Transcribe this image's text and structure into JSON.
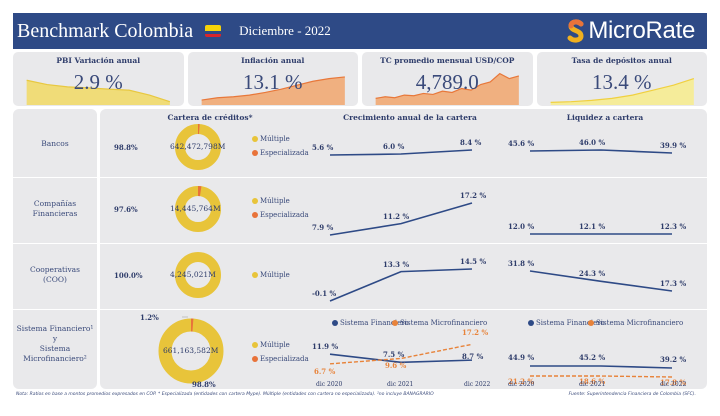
{
  "header": {
    "title": "Benchmark Colombia",
    "period": "Diciembre - 2022",
    "logo_text": "MicroRate",
    "flag": "colombia-flag-icon"
  },
  "kpis": [
    {
      "label": "PBI Variación anual",
      "value": "2.9 %",
      "color": "#f0dc78",
      "line": "#e8c840",
      "trend": [
        0.75,
        0.62,
        0.55,
        0.52,
        0.48,
        0.45,
        0.3,
        0.1
      ]
    },
    {
      "label": "Inflación anual",
      "value": "13.1 %",
      "color": "#f0b080",
      "line": "#e8783a",
      "trend": [
        0.15,
        0.22,
        0.25,
        0.3,
        0.38,
        0.48,
        0.6,
        0.72,
        0.8,
        0.85
      ]
    },
    {
      "label": "TC promedio mensual USD/COP",
      "value": "4,789.0",
      "color": "#f0b080",
      "line": "#e8783a",
      "trend": [
        0.2,
        0.25,
        0.22,
        0.3,
        0.28,
        0.35,
        0.32,
        0.42,
        0.38,
        0.5,
        0.45,
        0.62,
        0.7,
        0.95,
        0.8,
        0.88
      ]
    },
    {
      "label": "Tasa de depósitos anual",
      "value": "13.4 %",
      "color": "#f5ec9a",
      "line": "#f0d040",
      "trend": [
        0.08,
        0.1,
        0.14,
        0.2,
        0.3,
        0.45,
        0.6,
        0.8
      ]
    }
  ],
  "columns": {
    "cartera": "Cartera de créditos*",
    "crecimiento": "Crecimiento anual de la cartera",
    "liquidez": "Liquidez a cartera"
  },
  "colors": {
    "multiple": "#e8c43a",
    "especializada": "#e8733a",
    "sistema_financiero": "#2e4a86",
    "sistema_microfinanciero": "#e8833a"
  },
  "legend": {
    "multiple": "Múltiple",
    "especializada": "Especializada",
    "sistema_financiero": "Sistema Financiero",
    "sistema_microfinanciero": "Sistema Microfinanciero"
  },
  "x_labels": [
    "dic 2020",
    "dic 2021",
    "dic 2022"
  ],
  "rows": [
    {
      "label": "Bancos",
      "total": "642,472,798M",
      "multiple_pct": 98.8,
      "multiple_label": "98.8%",
      "crecimiento": {
        "values": [
          5.6,
          6.0,
          8.4
        ],
        "labels": [
          "5.6 %",
          "6.0 %",
          "8.4 %"
        ]
      },
      "liquidez": {
        "values": [
          45.6,
          46.0,
          39.9
        ],
        "labels": [
          "45.6 %",
          "46.0 %",
          "39.9 %"
        ]
      }
    },
    {
      "label": "Compañías Financieras",
      "total": "14,445,764M",
      "multiple_pct": 97.6,
      "multiple_label": "97.6%",
      "crecimiento": {
        "values": [
          7.9,
          11.2,
          17.2
        ],
        "labels": [
          "7.9 %",
          "11.2 %",
          "17.2 %"
        ]
      },
      "liquidez": {
        "values": [
          12.0,
          12.1,
          12.3
        ],
        "labels": [
          "12.0 %",
          "12.1 %",
          "12.3 %"
        ]
      }
    },
    {
      "label": "Cooperativas (COO)",
      "total": "4,245,021M",
      "multiple_pct": 100.0,
      "multiple_label": "100.0%",
      "crecimiento": {
        "values": [
          -0.1,
          13.3,
          14.5
        ],
        "labels": [
          "-0.1 %",
          "13.3 %",
          "14.5 %"
        ]
      },
      "liquidez": {
        "values": [
          31.8,
          24.3,
          17.3
        ],
        "labels": [
          "31.8 %",
          "24.3 %",
          "17.3 %"
        ]
      }
    },
    {
      "label_lines": [
        "Sistema Financiero¹",
        "y",
        "Sistema",
        "Microfinanciero²"
      ],
      "total": "661,163,582M",
      "multiple_pct": 98.8,
      "multiple_label": "98.8%",
      "especializada_label": "1.2%",
      "crecimiento": {
        "financiero": {
          "values": [
            11.9,
            7.5,
            8.7
          ],
          "labels": [
            "11.9 %",
            "7.5 %",
            "8.7 %"
          ]
        },
        "microfinanciero": {
          "values": [
            6.7,
            9.6,
            17.2
          ],
          "labels": [
            "6.7 %",
            "9.6 %",
            "17.2 %"
          ]
        }
      },
      "liquidez": {
        "financiero": {
          "values": [
            44.9,
            45.2,
            39.2
          ],
          "labels": [
            "44.9 %",
            "45.2 %",
            "39.2 %"
          ]
        },
        "microfinanciero": {
          "values": [
            21.2,
            18.6,
            17.8
          ],
          "labels": [
            "21.2 %",
            "18.6 %",
            "17.8 %"
          ]
        }
      }
    }
  ],
  "footer": {
    "note": "Nota: Ratios en base a montos promedios expresados en COP. * Especializada (entidades con cartera Mype). Múltiple (entidades con cartera no especializada). ²no incluye BANAGRARIO",
    "source": "Fuente: Superintendencia Financiera de Colombia (SFC)."
  }
}
